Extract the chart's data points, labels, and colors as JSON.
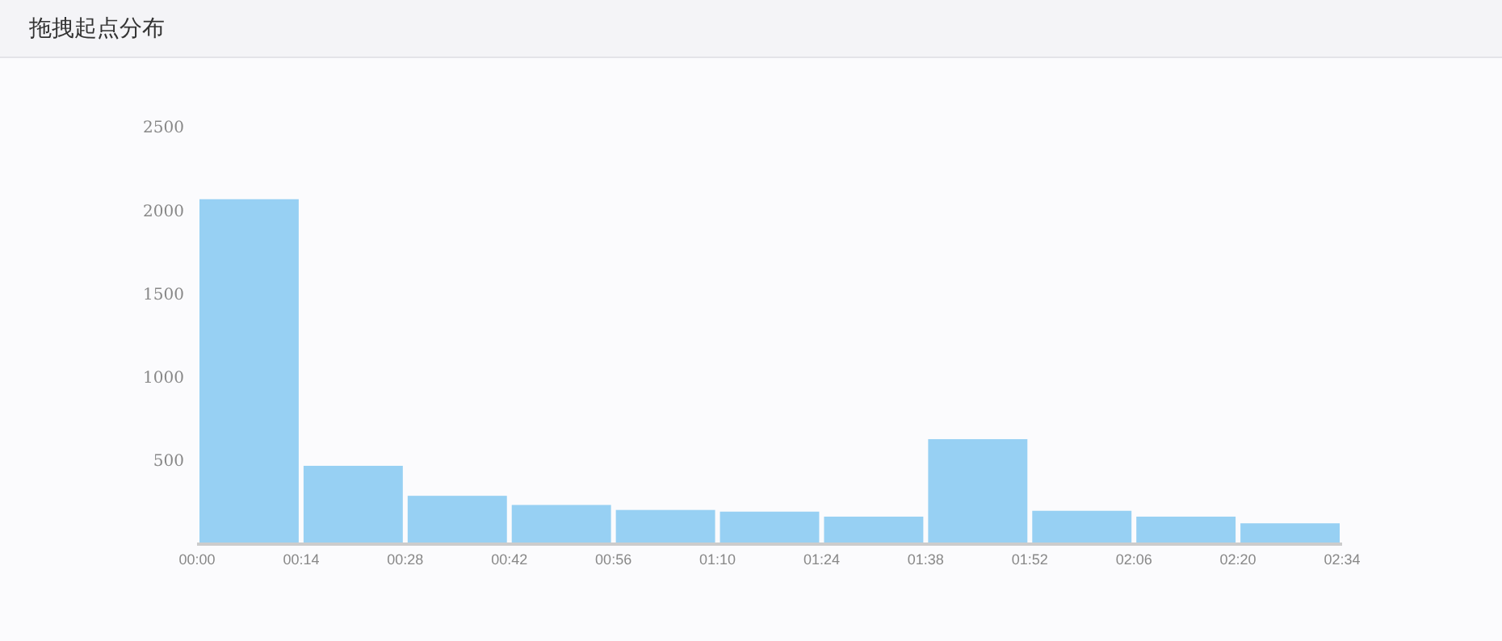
{
  "chart_data": {
    "type": "histogram",
    "title": "拖拽起点分布",
    "bins": [
      0,
      14,
      28,
      42,
      56,
      70,
      84,
      98,
      112,
      126,
      140,
      154
    ],
    "values": [
      2070,
      470,
      290,
      235,
      205,
      195,
      165,
      630,
      200,
      165,
      125
    ],
    "color": "#97d0f3",
    "xlim": [
      0,
      154
    ],
    "xticks": [
      {
        "value": 0,
        "label": "00:00"
      },
      {
        "value": 14,
        "label": "00:14"
      },
      {
        "value": 28,
        "label": "00:28"
      },
      {
        "value": 42,
        "label": "00:42"
      },
      {
        "value": 56,
        "label": "00:56"
      },
      {
        "value": 70,
        "label": "01:10"
      },
      {
        "value": 84,
        "label": "01:24"
      },
      {
        "value": 98,
        "label": "01:38"
      },
      {
        "value": 112,
        "label": "01:52"
      },
      {
        "value": 126,
        "label": "02:06"
      },
      {
        "value": 140,
        "label": "02:20"
      },
      {
        "value": 154,
        "label": "02:34"
      }
    ],
    "ylim": [
      0,
      2500
    ],
    "yticks": [
      500,
      1000,
      1500,
      2000,
      2500
    ],
    "grid": false
  }
}
